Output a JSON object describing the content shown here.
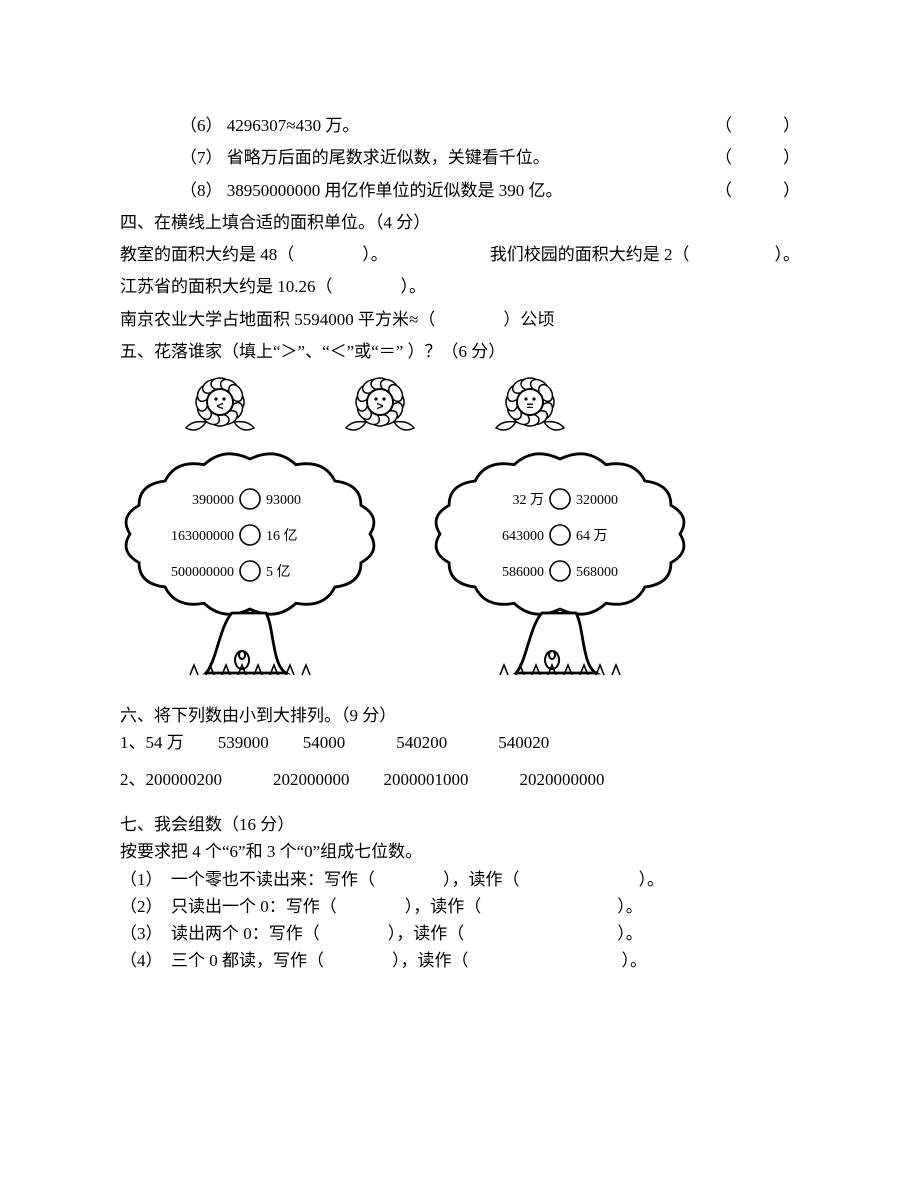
{
  "q6": {
    "label": "（6）",
    "text": "4296307≈430 万。",
    "paren": "（　　　）"
  },
  "q7": {
    "label": "（7）",
    "text": "省略万后面的尾数求近似数，关键看千位。",
    "paren": "（　　　）"
  },
  "q8": {
    "label": "（8）",
    "text": "38950000000 用亿作单位的近似数是 390 亿。",
    "paren": "（　　　）"
  },
  "sec4": {
    "heading": "四、在横线上填合适的面积单位。（4 分）",
    "line1a": "教室的面积大约是 48（　　　　）。",
    "line1b": "我们校园的面积大约是 2（　　　　　）。",
    "line2": "江苏省的面积大约是 10.26（　　　　）。",
    "line3": "南京农业大学占地面积 5594000 平方米≈（　　　　）公顷"
  },
  "sec5": {
    "heading": "五、花落谁家（填上“＞”、“＜”或“＝” ）？（6 分）",
    "flowers": [
      {
        "symbol": "<"
      },
      {
        "symbol": ">"
      },
      {
        "symbol": "="
      }
    ],
    "tree1": {
      "rows": [
        {
          "left": "390000",
          "right": "93000"
        },
        {
          "left": "163000000",
          "right": "16 亿"
        },
        {
          "left": "500000000",
          "right": "5 亿"
        }
      ]
    },
    "tree2": {
      "rows": [
        {
          "left": "32 万",
          "right": "320000"
        },
        {
          "left": "643000",
          "right": "64 万"
        },
        {
          "left": "586000",
          "right": "568000"
        }
      ]
    },
    "style": {
      "stroke": "#000000",
      "fill": "#ffffff",
      "petal_stroke": "#000000",
      "tree_stroke": "#000000",
      "font_size": 14
    }
  },
  "sec6": {
    "heading": "六、将下列数由小到大排列。（9 分）",
    "line1": "1、54 万　　539000　　54000　　　540200　　　540020",
    "line2": "2、200000200　　　202000000　　2000001000　　　2020000000"
  },
  "sec7": {
    "heading": "七、我会组数（16 分）",
    "sub": "按要求把 4 个“6”和 3 个“0”组成七位数。",
    "items": [
      "（1）　一个零也不读出来：写作（　　　　），读作（　　　　　　　）。",
      "（2）　只读出一个 0：写作（　　　　），读作（　　　　　　　　）。",
      "（3）　读出两个 0：写作（　　　　），读作（　　　　　　　　　）。",
      "（4）　三个 0 都读，写作（　　　　），读作（　　　　　　　　　）。"
    ]
  }
}
